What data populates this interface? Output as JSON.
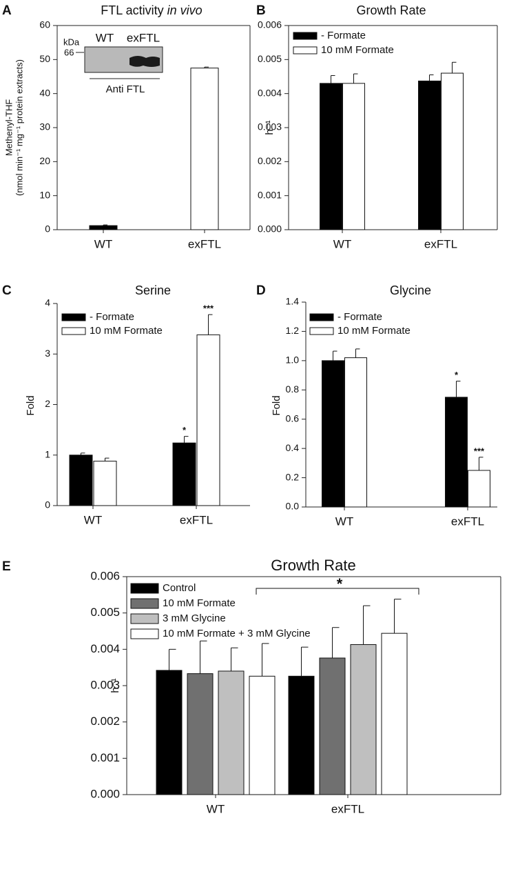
{
  "chart_data": [
    {
      "panel": "A",
      "type": "bar",
      "title": "FTL activity",
      "title_italic": "in vivo",
      "ylabel": [
        "Methenyl-THF",
        "(nmol min⁻¹ mg⁻¹ protein extracts)"
      ],
      "categories": [
        "WT",
        "exFTL"
      ],
      "values": [
        1.2,
        47.5
      ],
      "errors": [
        0.2,
        0.3
      ],
      "colors": [
        "#000000",
        "#ffffff"
      ],
      "ylim": [
        0,
        60
      ],
      "yticks": [
        0,
        10,
        20,
        30,
        40,
        50,
        60
      ],
      "frame": true,
      "inset": {
        "unit": "kDa",
        "marker": "66",
        "lanes": [
          "WT",
          "exFTL"
        ],
        "antibody": "Anti FTL"
      }
    },
    {
      "panel": "B",
      "type": "bar",
      "title": "Growth Rate",
      "ylabel": "h⁻¹",
      "categories": [
        "WT",
        "exFTL"
      ],
      "series": [
        {
          "name": "- Formate",
          "color": "#000000",
          "values": [
            0.0043,
            0.00437
          ],
          "errors": [
            0.00023,
            0.00018
          ]
        },
        {
          "name": "10 mM Formate",
          "color": "#ffffff",
          "values": [
            0.0043,
            0.0046
          ],
          "errors": [
            0.00028,
            0.00032
          ]
        }
      ],
      "ylim": [
        0,
        0.006
      ],
      "yticks": [
        {
          "value": 0,
          "label": "0.000"
        },
        0.001,
        0.002,
        0.003,
        0.004,
        0.005,
        0.006
      ],
      "frame": true,
      "legend": "upper left"
    },
    {
      "panel": "C",
      "type": "bar",
      "title": "Serine",
      "ylabel": "Fold",
      "categories": [
        "WT",
        "exFTL"
      ],
      "series": [
        {
          "name": "- Formate",
          "color": "#000000",
          "values": [
            1.0,
            1.24
          ],
          "errors": [
            0.04,
            0.13
          ],
          "significance": [
            null,
            "*"
          ]
        },
        {
          "name": "10 mM Formate",
          "color": "#ffffff",
          "values": [
            0.88,
            3.38
          ],
          "errors": [
            0.06,
            0.4
          ],
          "significance": [
            null,
            "***"
          ]
        }
      ],
      "ylim": [
        0,
        4
      ],
      "yticks": [
        0,
        1,
        2,
        3,
        4
      ],
      "frame": false,
      "legend": "upper left"
    },
    {
      "panel": "D",
      "type": "bar",
      "title": "Glycine",
      "ylabel": "Fold",
      "categories": [
        "WT",
        "exFTL"
      ],
      "series": [
        {
          "name": "- Formate",
          "color": "#000000",
          "values": [
            1.0,
            0.75
          ],
          "errors": [
            0.065,
            0.11
          ],
          "significance": [
            null,
            "*"
          ]
        },
        {
          "name": "10 mM Formate",
          "color": "#ffffff",
          "values": [
            1.02,
            0.25
          ],
          "errors": [
            0.06,
            0.09
          ],
          "significance": [
            null,
            "***"
          ]
        }
      ],
      "ylim": [
        0,
        1.4
      ],
      "yticks": [
        {
          "value": 0,
          "label": "0.0"
        },
        0.2,
        0.4,
        0.6,
        0.8,
        {
          "value": 1,
          "label": "1.0"
        },
        1.2,
        1.4
      ],
      "frame": false,
      "legend": "upper left"
    },
    {
      "panel": "E",
      "type": "bar",
      "title": "Growth Rate",
      "ylabel": "h⁻¹",
      "categories": [
        "WT",
        "exFTL"
      ],
      "series": [
        {
          "name": "Control",
          "color": "#000000",
          "values": [
            0.00342,
            0.00326
          ],
          "errors": [
            0.00058,
            0.0008
          ]
        },
        {
          "name": "10 mM Formate",
          "color": "#707070",
          "values": [
            0.00333,
            0.00376
          ],
          "errors": [
            0.0009,
            0.00084
          ]
        },
        {
          "name": "3 mM Glycine",
          "color": "#bfbfbf",
          "values": [
            0.0034,
            0.00413
          ],
          "errors": [
            0.00064,
            0.00107
          ]
        },
        {
          "name": "10 mM Formate + 3 mM Glycine",
          "color": "#ffffff",
          "values": [
            0.00326,
            0.00444
          ],
          "errors": [
            0.0009,
            0.00094
          ]
        }
      ],
      "ylim": [
        0,
        0.006
      ],
      "yticks": [
        {
          "value": 0,
          "label": "0.000"
        },
        0.001,
        0.002,
        0.003,
        0.004,
        0.005,
        0.006
      ],
      "frame": true,
      "legend": "upper left",
      "bracket_label": "*"
    }
  ]
}
